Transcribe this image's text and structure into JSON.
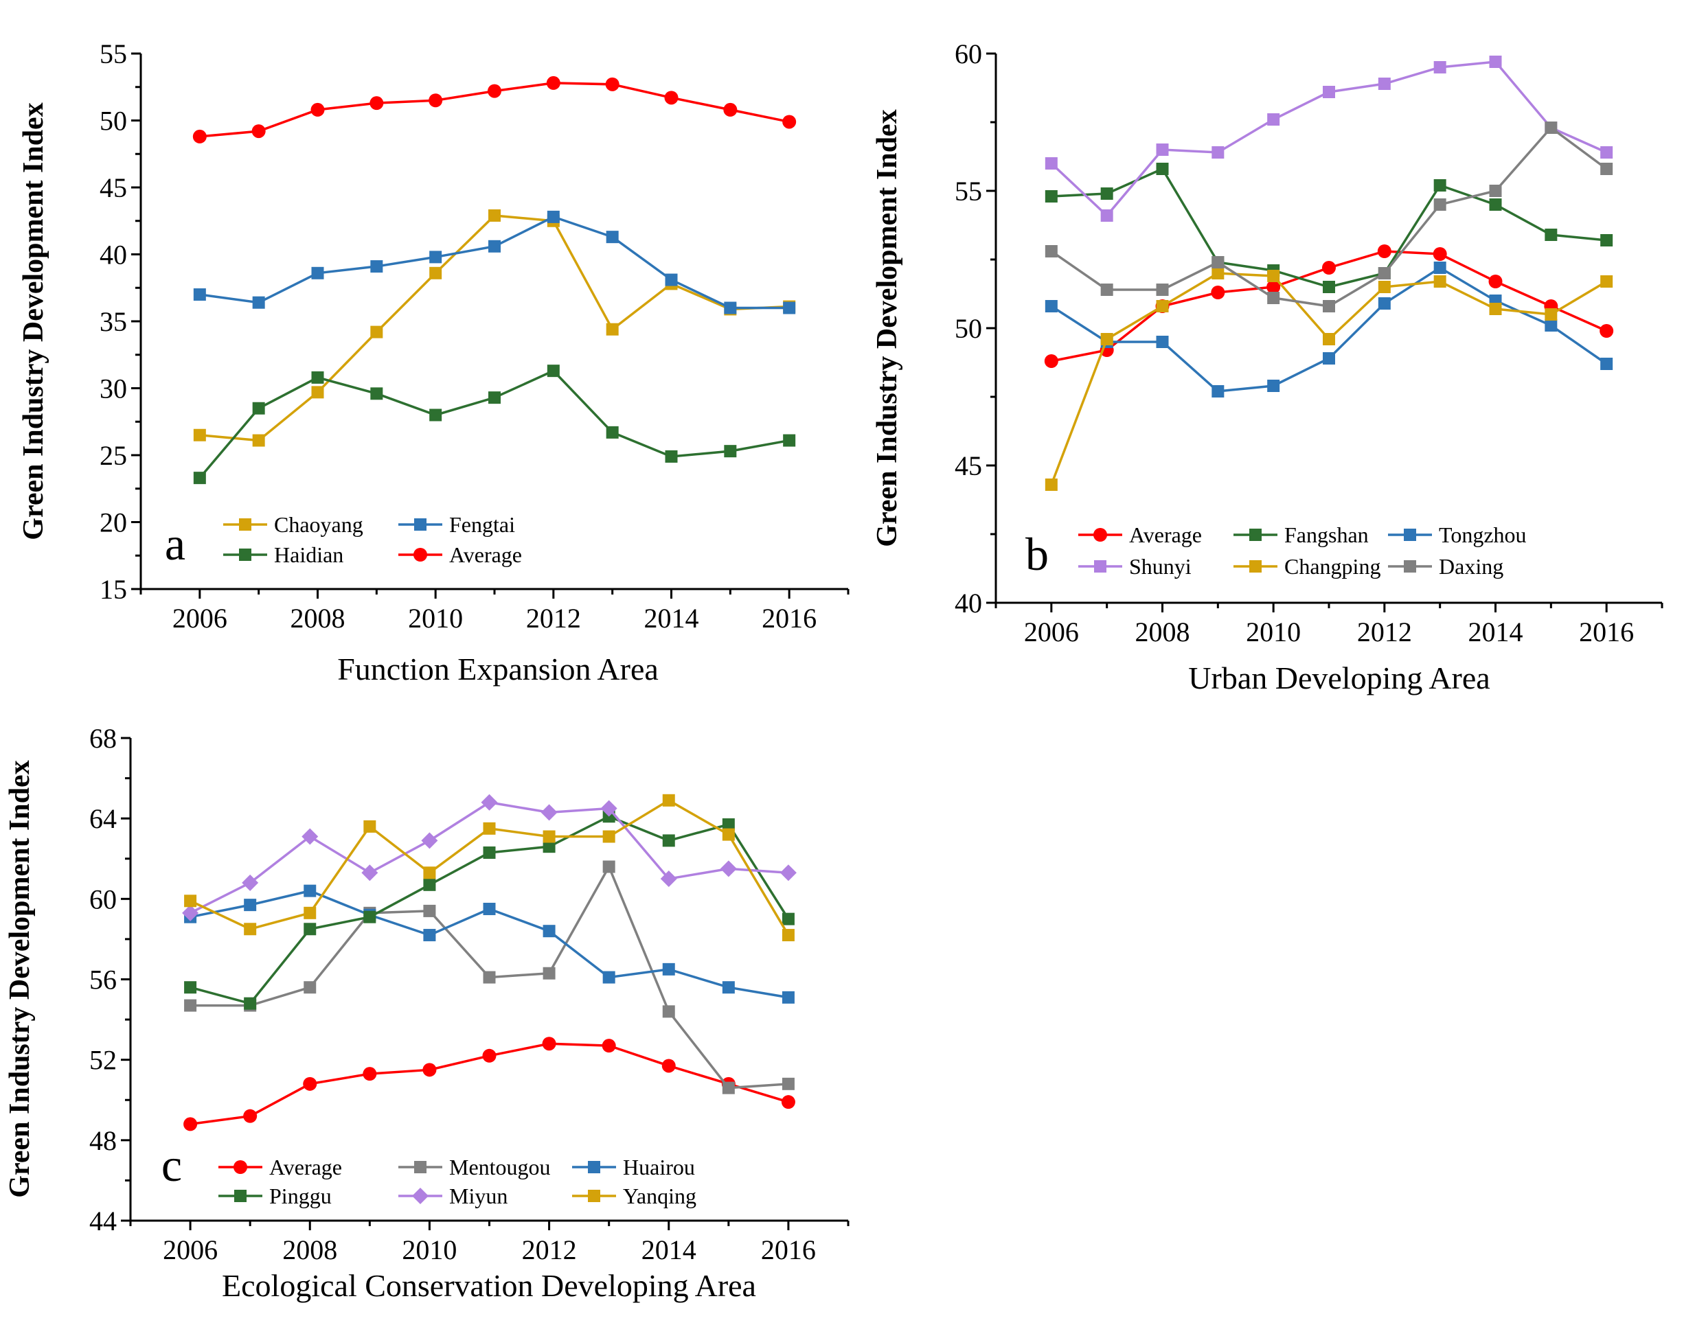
{
  "figure": {
    "background": "#ffffff"
  },
  "colors": {
    "Average": "#ff0000",
    "Chaoyang": "#d4a20a",
    "Fengtai": "#2e75b6",
    "Haidian": "#2d7030",
    "Fangshan": "#2d7030",
    "Tongzhou": "#2e75b6",
    "Shunyi": "#b080e0",
    "Changping": "#d4a20a",
    "Daxing": "#808080",
    "Mentougou": "#808080",
    "Huairou": "#2e75b6",
    "Pinggu": "#2d7030",
    "Miyun": "#b080e0",
    "Yanqing": "#d4a20a"
  },
  "chart_data": [
    {
      "id": "a",
      "type": "line",
      "panel_label": "a",
      "xlabel": "Function Expansion Area",
      "ylabel": "Green Industry Development Index",
      "xlim": [
        2005,
        2017
      ],
      "ylim": [
        15,
        55
      ],
      "xticks": [
        2006,
        2008,
        2010,
        2012,
        2014,
        2016
      ],
      "yticks": [
        15,
        20,
        25,
        30,
        35,
        40,
        45,
        50,
        55
      ],
      "legend_position": "bottom-left",
      "legend_columns": 2,
      "x": [
        2006,
        2007,
        2008,
        2009,
        2010,
        2011,
        2012,
        2013,
        2014,
        2015,
        2016
      ],
      "series": [
        {
          "name": "Chaoyang",
          "marker": "square",
          "values": [
            26.5,
            26.1,
            29.7,
            34.2,
            38.6,
            42.9,
            42.5,
            34.4,
            37.8,
            35.9,
            36.1
          ]
        },
        {
          "name": "Fengtai",
          "marker": "square",
          "values": [
            37.0,
            36.4,
            38.6,
            39.1,
            39.8,
            40.6,
            42.8,
            41.3,
            38.1,
            36.0,
            36.0
          ]
        },
        {
          "name": "Haidian",
          "marker": "square",
          "values": [
            23.3,
            28.5,
            30.8,
            29.6,
            28.0,
            29.3,
            31.3,
            26.7,
            24.9,
            25.3,
            26.1
          ]
        },
        {
          "name": "Average",
          "marker": "circle",
          "values": [
            48.8,
            49.2,
            50.8,
            51.3,
            51.5,
            52.2,
            52.8,
            52.7,
            51.7,
            50.8,
            49.9
          ]
        }
      ]
    },
    {
      "id": "b",
      "type": "line",
      "panel_label": "b",
      "xlabel": "Urban Developing Area",
      "ylabel": "Green Industry Development Index",
      "xlim": [
        2005,
        2017
      ],
      "ylim": [
        40,
        60
      ],
      "xticks": [
        2006,
        2008,
        2010,
        2012,
        2014,
        2016
      ],
      "yticks": [
        40,
        45,
        50,
        55,
        60
      ],
      "legend_position": "bottom",
      "legend_columns": 3,
      "x": [
        2006,
        2007,
        2008,
        2009,
        2010,
        2011,
        2012,
        2013,
        2014,
        2015,
        2016
      ],
      "series": [
        {
          "name": "Average",
          "marker": "circle",
          "values": [
            48.8,
            49.2,
            50.8,
            51.3,
            51.5,
            52.2,
            52.8,
            52.7,
            51.7,
            50.8,
            49.9
          ]
        },
        {
          "name": "Fangshan",
          "marker": "square",
          "values": [
            54.8,
            54.9,
            55.8,
            52.4,
            52.1,
            51.5,
            52.0,
            55.2,
            54.5,
            53.4,
            53.2
          ]
        },
        {
          "name": "Tongzhou",
          "marker": "square",
          "values": [
            50.8,
            49.5,
            49.5,
            47.7,
            47.9,
            48.9,
            50.9,
            52.2,
            51.0,
            50.1,
            48.7
          ]
        },
        {
          "name": "Shunyi",
          "marker": "square",
          "values": [
            56.0,
            54.1,
            56.5,
            56.4,
            57.6,
            58.6,
            58.9,
            59.5,
            59.7,
            57.3,
            56.4
          ]
        },
        {
          "name": "Changping",
          "marker": "square",
          "values": [
            44.3,
            49.6,
            50.8,
            52.0,
            51.9,
            49.6,
            51.5,
            51.7,
            50.7,
            50.5,
            51.7
          ]
        },
        {
          "name": "Daxing",
          "marker": "square",
          "values": [
            52.8,
            51.4,
            51.4,
            52.4,
            51.1,
            50.8,
            52.0,
            54.5,
            55.0,
            57.3,
            55.8
          ]
        }
      ]
    },
    {
      "id": "c",
      "type": "line",
      "panel_label": "c",
      "xlabel": "Ecological Conservation Developing Area",
      "ylabel": "Green Industry Development Index",
      "xlim": [
        2005,
        2017
      ],
      "ylim": [
        44,
        68
      ],
      "xticks": [
        2006,
        2008,
        2010,
        2012,
        2014,
        2016
      ],
      "yticks": [
        44,
        48,
        52,
        56,
        60,
        64,
        68
      ],
      "legend_position": "bottom",
      "legend_columns": 3,
      "x": [
        2006,
        2007,
        2008,
        2009,
        2010,
        2011,
        2012,
        2013,
        2014,
        2015,
        2016
      ],
      "series": [
        {
          "name": "Average",
          "marker": "circle",
          "values": [
            48.8,
            49.2,
            50.8,
            51.3,
            51.5,
            52.2,
            52.8,
            52.7,
            51.7,
            50.8,
            49.9
          ]
        },
        {
          "name": "Mentougou",
          "marker": "square",
          "values": [
            54.7,
            54.7,
            55.6,
            59.3,
            59.4,
            56.1,
            56.3,
            61.6,
            54.4,
            50.6,
            50.8
          ]
        },
        {
          "name": "Huairou",
          "marker": "square",
          "values": [
            59.1,
            59.7,
            60.4,
            59.2,
            58.2,
            59.5,
            58.4,
            56.1,
            56.5,
            55.6,
            55.1
          ]
        },
        {
          "name": "Pinggu",
          "marker": "square",
          "values": [
            55.6,
            54.8,
            58.5,
            59.1,
            60.7,
            62.3,
            62.6,
            64.1,
            62.9,
            63.7,
            59.0
          ]
        },
        {
          "name": "Miyun",
          "marker": "diamond",
          "values": [
            59.3,
            60.8,
            63.1,
            61.3,
            62.9,
            64.8,
            64.3,
            64.5,
            61.0,
            61.5,
            61.3
          ]
        },
        {
          "name": "Yanqing",
          "marker": "square",
          "values": [
            59.9,
            58.5,
            59.3,
            63.6,
            61.3,
            63.5,
            63.1,
            63.1,
            64.9,
            63.2,
            58.2
          ]
        }
      ]
    }
  ]
}
